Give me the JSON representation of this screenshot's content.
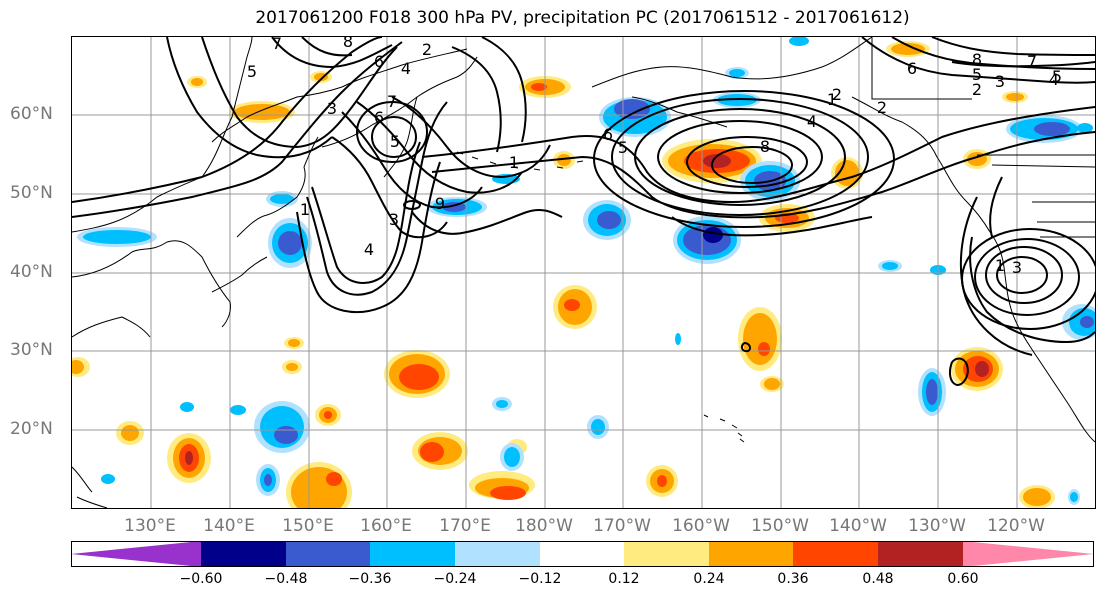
{
  "title": "2017061200 F018 300 hPa PV, precipitation PC (2017061512 - 2017061612)",
  "lat_labels": [
    "60°N",
    "50°N",
    "40°N",
    "30°N",
    "20°N"
  ],
  "lon_labels": [
    "130°E",
    "140°E",
    "150°E",
    "160°E",
    "170°E",
    "180°W",
    "170°W",
    "160°W",
    "150°W",
    "140°W",
    "130°W",
    "120°W"
  ],
  "colorbar": {
    "colors": [
      "#9932CC",
      "#00008B",
      "#3A5BD0",
      "#00BFFF",
      "#B0E2FF",
      "#FFFFFF",
      "#FFEB80",
      "#FFA500",
      "#FF4500",
      "#B22222",
      "#FF88AA"
    ],
    "tick_labels": [
      "−0.60",
      "−0.48",
      "−0.36",
      "−0.24",
      "−0.12",
      "0.12",
      "0.24",
      "0.36",
      "0.48",
      "0.60"
    ]
  },
  "contour_labels": [
    "7",
    "8",
    "6",
    "5",
    "4",
    "2",
    "3",
    "1",
    "7",
    "6",
    "5",
    "4",
    "3",
    "1",
    "2",
    "6",
    "5",
    "8",
    "4",
    "9",
    "1",
    "2",
    "3",
    "5",
    "8",
    "7",
    "2",
    "1",
    "6",
    "5",
    "4",
    "3"
  ]
}
